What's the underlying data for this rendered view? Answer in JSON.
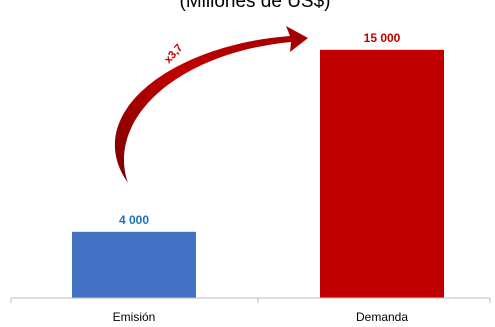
{
  "chart_data": {
    "type": "bar",
    "subtitle": "(Millones de US$)",
    "categories": [
      "Emisión",
      "Demanda"
    ],
    "values": [
      4000,
      15000
    ],
    "value_labels": [
      "4 000",
      "15 000"
    ],
    "colors": [
      "#4472C4",
      "#C00000"
    ],
    "annotation": "x3,7",
    "annotation_color": "#C00000",
    "ylim": [
      0,
      16500
    ],
    "grid": false,
    "legend": "none"
  }
}
